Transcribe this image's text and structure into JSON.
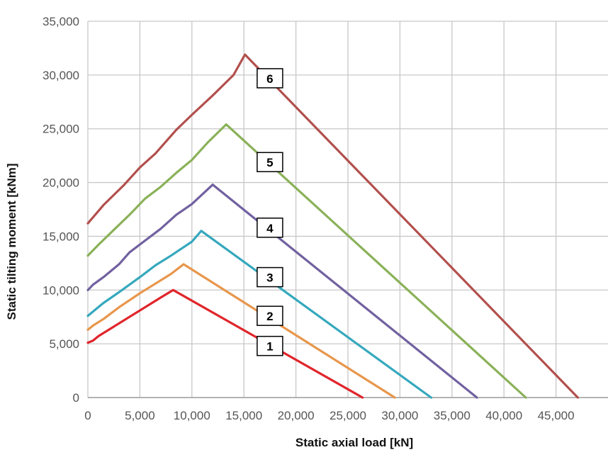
{
  "chart_data": {
    "type": "line",
    "xlabel": "Static axial load [kN]",
    "ylabel": "Static tilting moment [kNm]",
    "xlim": [
      0,
      50000
    ],
    "ylim": [
      0,
      35000
    ],
    "x_ticks": [
      0,
      5000,
      10000,
      15000,
      20000,
      25000,
      30000,
      35000,
      40000,
      45000
    ],
    "x_tick_labels": [
      "0",
      "5,000",
      "10,000",
      "15,000",
      "20,000",
      "25,000",
      "30,000",
      "35,000",
      "40,000",
      "45,000"
    ],
    "y_ticks": [
      0,
      5000,
      10000,
      15000,
      20000,
      25000,
      30000,
      35000
    ],
    "y_tick_labels": [
      "0",
      "5,000",
      "10,000",
      "15,000",
      "20,000",
      "25,000",
      "30,000",
      "35,000"
    ],
    "grid": true,
    "legend": "none",
    "series": [
      {
        "label": "1",
        "color": "#e0252b",
        "x": [
          0,
          500,
          1000,
          2000,
          4000,
          6000,
          7000,
          8200,
          26400
        ],
        "y": [
          5100,
          5300,
          5700,
          6300,
          7500,
          8700,
          9300,
          10000,
          0
        ],
        "label_x": 17500,
        "label_y": 4800
      },
      {
        "label": "2",
        "color": "#e8964b",
        "x": [
          0,
          500,
          1500,
          3000,
          5000,
          6500,
          8000,
          9200,
          29500
        ],
        "y": [
          6300,
          6700,
          7300,
          8400,
          9700,
          10600,
          11500,
          12400,
          0
        ],
        "label_x": 17500,
        "label_y": 7600
      },
      {
        "label": "3",
        "color": "#35a8bd",
        "x": [
          0,
          500,
          1500,
          3000,
          5000,
          6500,
          8000,
          10000,
          10900,
          33000
        ],
        "y": [
          7600,
          8000,
          8800,
          9800,
          11200,
          12300,
          13200,
          14500,
          15500,
          0
        ],
        "label_x": 17500,
        "label_y": 11200
      },
      {
        "label": "4",
        "color": "#7161a0",
        "x": [
          0,
          500,
          1500,
          3000,
          4000,
          5500,
          7000,
          8500,
          10000,
          12000,
          37400
        ],
        "y": [
          10000,
          10500,
          11200,
          12400,
          13500,
          14600,
          15700,
          17000,
          18000,
          19800,
          0
        ],
        "label_x": 17500,
        "label_y": 15800
      },
      {
        "label": "5",
        "color": "#8ab158",
        "x": [
          0,
          1000,
          2500,
          4000,
          5500,
          7000,
          8500,
          10000,
          11500,
          13300,
          42100
        ],
        "y": [
          13200,
          14200,
          15600,
          17000,
          18500,
          19600,
          20900,
          22100,
          23700,
          25400,
          0
        ],
        "label_x": 17500,
        "label_y": 21900
      },
      {
        "label": "6",
        "color": "#b2504d",
        "x": [
          0,
          1500,
          3500,
          5000,
          6500,
          8500,
          10000,
          12000,
          14000,
          15100,
          47100
        ],
        "y": [
          16200,
          17900,
          19800,
          21400,
          22700,
          24900,
          26300,
          28100,
          30000,
          31900,
          0
        ],
        "label_x": 17500,
        "label_y": 29700
      }
    ]
  }
}
